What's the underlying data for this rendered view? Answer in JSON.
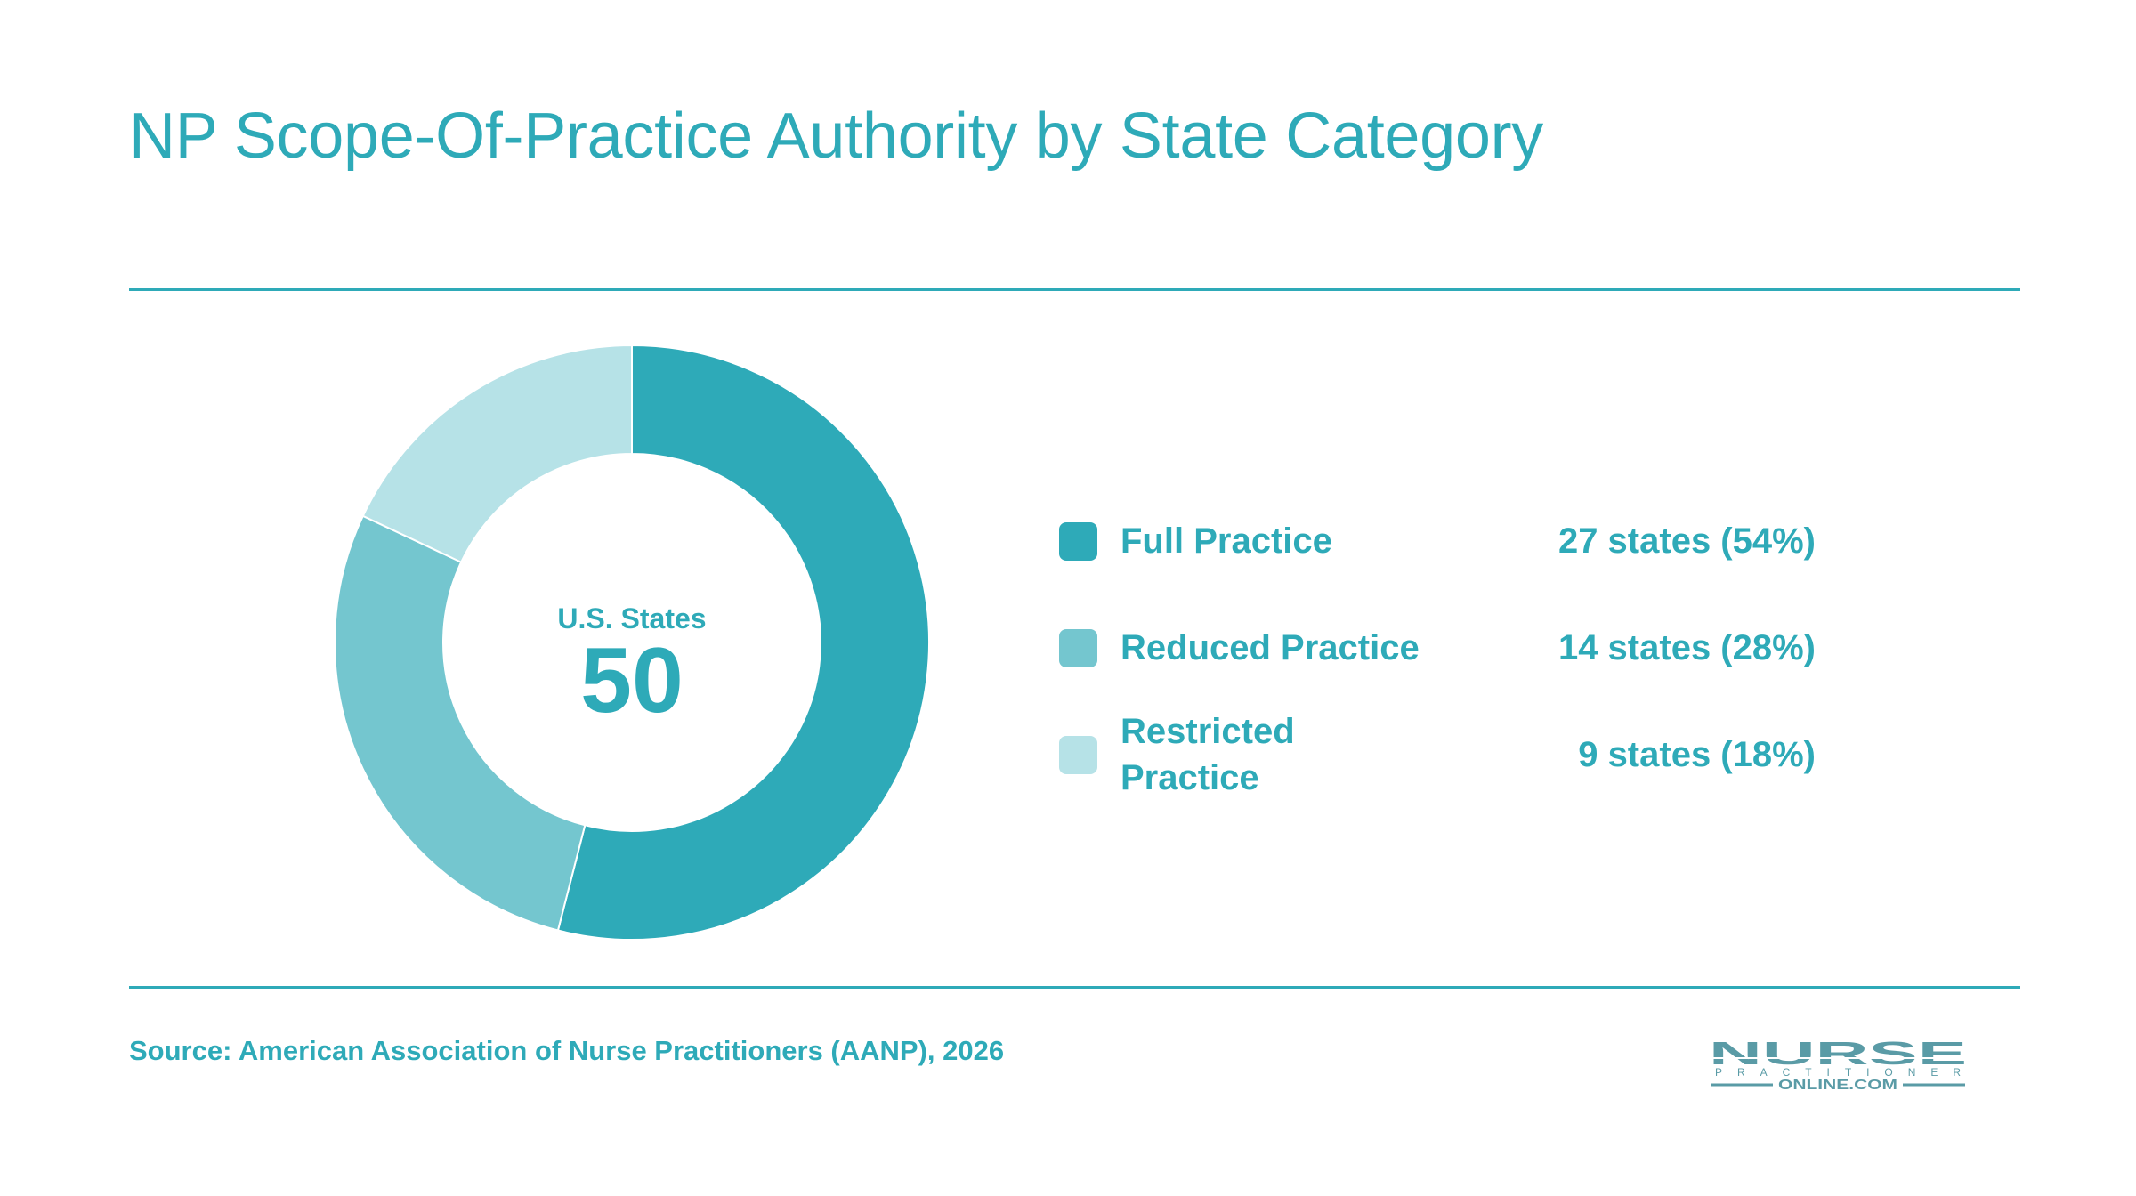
{
  "title": "NP Scope-Of-Practice Authority by State Category",
  "center": {
    "label": "U.S. States",
    "value": "50"
  },
  "source": "Source: American Association of Nurse Practitioners (AANP), 2026",
  "logo": {
    "line1": "NURSE",
    "line2": "PRACTITIONER",
    "line3": "ONLINE.COM",
    "color": "#5a9ba6"
  },
  "colors": {
    "accent": "#2eaab8"
  },
  "chart_data": {
    "type": "pie",
    "subtype": "donut",
    "title": "NP Scope-Of-Practice Authority by State Category",
    "total": 50,
    "categories": [
      "Full Practice",
      "Reduced Practice",
      "Restricted Practice"
    ],
    "values": [
      27,
      14,
      9
    ],
    "percents": [
      54,
      28,
      18
    ],
    "value_labels": [
      "27 states (54%)",
      "14 states (28%)",
      "9 states (18%)"
    ],
    "colors": [
      "#2eaab8",
      "#74c6cf",
      "#b6e2e7"
    ],
    "legend": "right"
  }
}
